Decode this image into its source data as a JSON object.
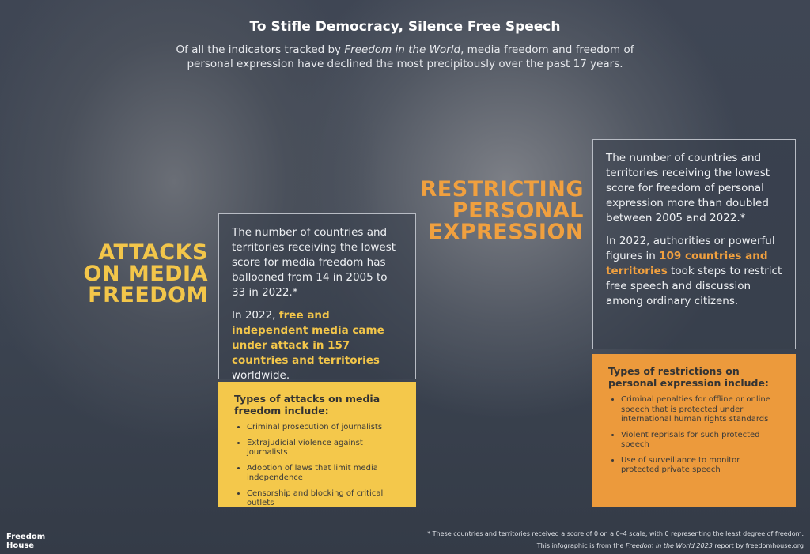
{
  "header": {
    "title": "To Stifle Democracy, Silence Free Speech",
    "subtitle": [
      "Of all the indicators tracked by ",
      "Freedom in the World",
      ", media freedom and freedom of personal expression have declined the most precipitously over the past 17 years."
    ]
  },
  "media": {
    "heading": [
      "ATTACKS",
      "ON MEDIA",
      "FREEDOM"
    ],
    "paragraph1": "The number of countries and territories receiving the lowest score for media freedom has ballooned from 14 in 2005 to 33 in 2022.*",
    "paragraph2": [
      "In 2022, ",
      "free and independent media came under attack in 157 countries and territories",
      " worldwide."
    ],
    "list_title": "Types of attacks on media freedom include:",
    "items": [
      "Criminal prosecution of journalists",
      "Extrajudicial violence against journalists",
      "Adoption of laws that limit media independence",
      "Censorship and blocking of critical outlets"
    ]
  },
  "expression": {
    "heading": [
      "RESTRICTING",
      "PERSONAL",
      "EXPRESSION"
    ],
    "paragraph1": "The number of countries and territories receiving the lowest score for freedom of personal expression more than doubled between 2005 and 2022.*",
    "paragraph2": [
      "In 2022, authorities or powerful figures in ",
      "109 countries and territories",
      " took steps to restrict free speech and discussion among ordinary citizens."
    ],
    "list_title": "Types of restrictions on personal expression include:",
    "items": [
      "Criminal penalties for offline or online speech that is protected under international human rights standards",
      "Violent reprisals for such protected speech",
      "Use of surveillance to monitor protected private speech"
    ]
  },
  "footer": {
    "logo": [
      "Freedom",
      "House"
    ],
    "note": "* These countries and territories received a score of 0 on a 0–4 scale, with 0 representing the least degree of freedom.",
    "source": [
      "This infographic is from the ",
      "Freedom in the World 2023",
      " report by freedomhouse.org"
    ]
  }
}
